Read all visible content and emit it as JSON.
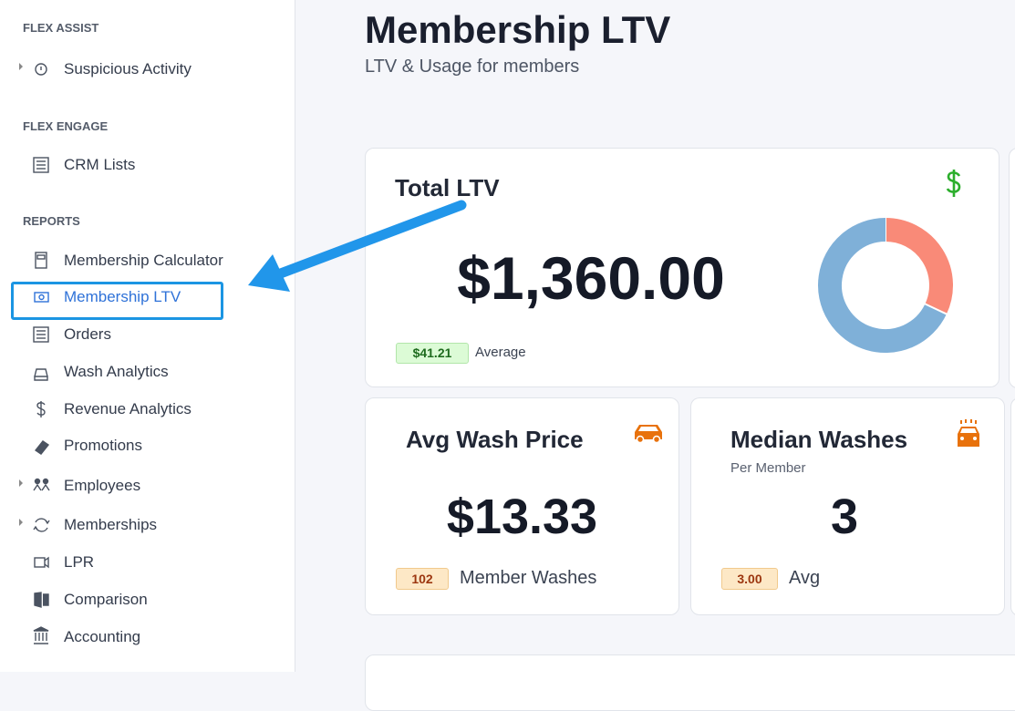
{
  "sidebar": {
    "sections": [
      {
        "title": "FLEX ASSIST",
        "items": [
          "Suspicious Activity"
        ]
      },
      {
        "title": "FLEX ENGAGE",
        "items": [
          "CRM Lists"
        ]
      },
      {
        "title": "REPORTS",
        "items": [
          "Membership Calculator",
          "Membership LTV",
          "Orders",
          "Wash Analytics",
          "Revenue Analytics",
          "Promotions",
          "Employees",
          "Memberships",
          "LPR",
          "Comparison",
          "Accounting"
        ]
      }
    ]
  },
  "header": {
    "title": "Membership LTV",
    "subtitle": "LTV & Usage for members"
  },
  "cards": [
    {
      "title": "Total LTV",
      "value": "$1,360.00",
      "badge": "$41.21",
      "badge_label": "Average",
      "donut": {
        "values": [
          32,
          68
        ],
        "colors": [
          "#f98a78",
          "#7fb0d8"
        ]
      }
    },
    {
      "title": "Avg Wash Price",
      "value": "$13.33",
      "badge": "102",
      "badge_label": "Member Washes"
    },
    {
      "title": "Median Washes",
      "subtitle": "Per Member",
      "value": "3",
      "badge": "3.00",
      "badge_label": "Avg"
    }
  ]
}
